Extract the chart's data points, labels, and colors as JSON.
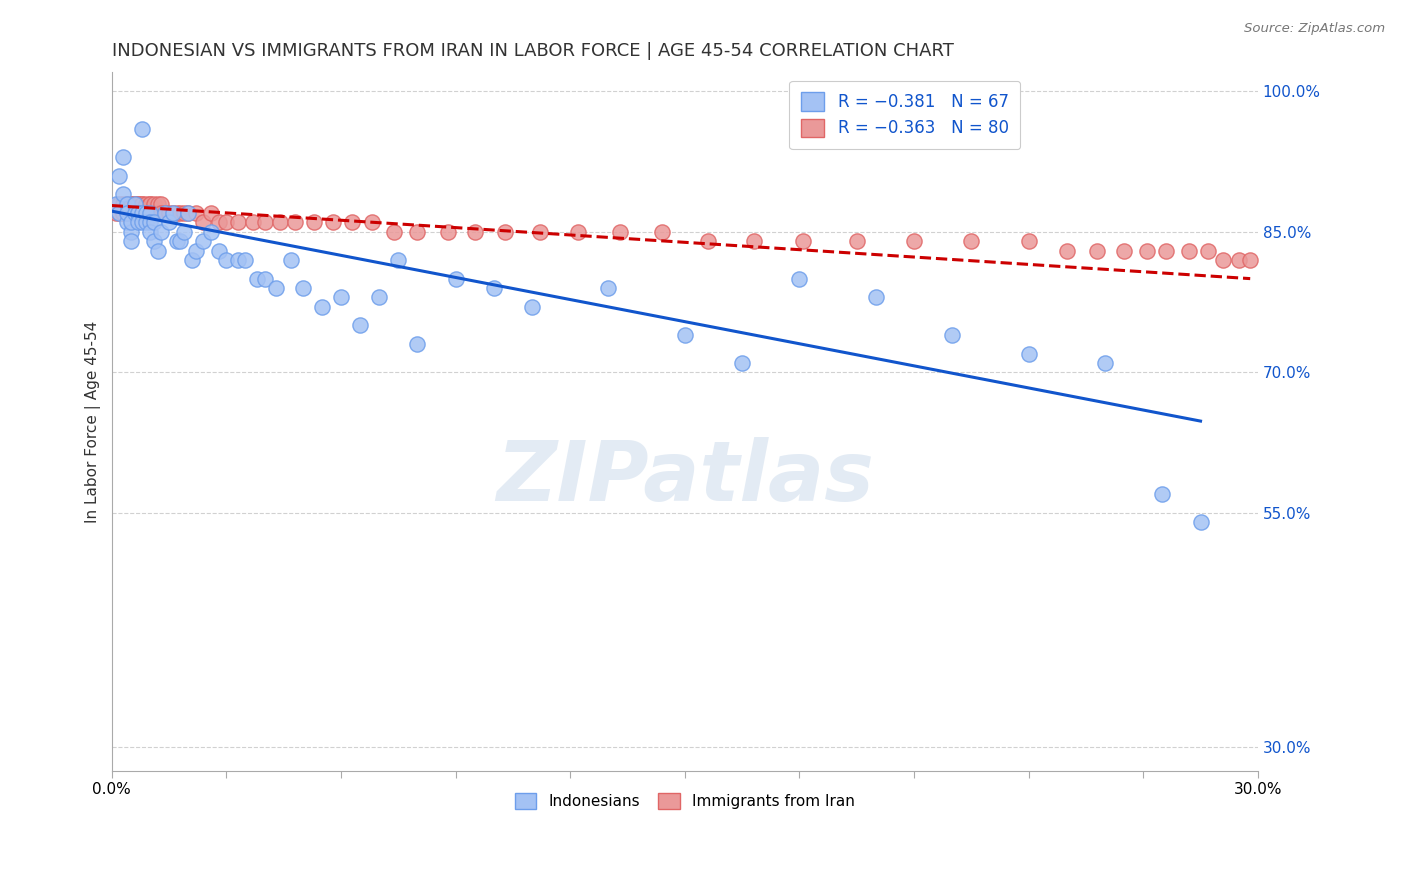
{
  "title": "INDONESIAN VS IMMIGRANTS FROM IRAN IN LABOR FORCE | AGE 45-54 CORRELATION CHART",
  "source": "Source: ZipAtlas.com",
  "ylabel": "In Labor Force | Age 45-54",
  "ytick_labels": [
    "100.0%",
    "85.0%",
    "70.0%",
    "55.0%",
    "30.0%"
  ],
  "ytick_vals": [
    1.0,
    0.85,
    0.7,
    0.55,
    0.3
  ],
  "xlim": [
    0.0,
    0.3
  ],
  "ylim": [
    0.275,
    1.02
  ],
  "blue_color": "#a4c2f4",
  "blue_edge_color": "#6d9eeb",
  "pink_color": "#ea9999",
  "pink_edge_color": "#e06666",
  "blue_line_color": "#1155cc",
  "pink_line_color": "#cc0000",
  "background_color": "#ffffff",
  "grid_color": "#cccccc",
  "watermark": "ZIPatlas",
  "title_fontsize": 13,
  "axis_label_fontsize": 11,
  "tick_fontsize": 11,
  "blue_scatter_x": [
    0.001,
    0.002,
    0.002,
    0.003,
    0.003,
    0.004,
    0.004,
    0.004,
    0.005,
    0.005,
    0.005,
    0.006,
    0.006,
    0.007,
    0.007,
    0.007,
    0.008,
    0.008,
    0.008,
    0.009,
    0.009,
    0.01,
    0.01,
    0.01,
    0.011,
    0.011,
    0.012,
    0.013,
    0.014,
    0.015,
    0.016,
    0.017,
    0.018,
    0.019,
    0.02,
    0.021,
    0.022,
    0.024,
    0.026,
    0.028,
    0.03,
    0.033,
    0.035,
    0.038,
    0.04,
    0.043,
    0.047,
    0.05,
    0.055,
    0.06,
    0.065,
    0.07,
    0.075,
    0.08,
    0.09,
    0.1,
    0.11,
    0.13,
    0.15,
    0.165,
    0.18,
    0.2,
    0.22,
    0.24,
    0.26,
    0.275,
    0.285
  ],
  "blue_scatter_y": [
    0.88,
    0.91,
    0.87,
    0.89,
    0.93,
    0.88,
    0.86,
    0.87,
    0.85,
    0.86,
    0.84,
    0.88,
    0.87,
    0.87,
    0.87,
    0.86,
    0.96,
    0.87,
    0.86,
    0.87,
    0.86,
    0.87,
    0.86,
    0.85,
    0.84,
    0.86,
    0.83,
    0.85,
    0.87,
    0.86,
    0.87,
    0.84,
    0.84,
    0.85,
    0.87,
    0.82,
    0.83,
    0.84,
    0.85,
    0.83,
    0.82,
    0.82,
    0.82,
    0.8,
    0.8,
    0.79,
    0.82,
    0.79,
    0.77,
    0.78,
    0.75,
    0.78,
    0.82,
    0.73,
    0.8,
    0.79,
    0.77,
    0.79,
    0.74,
    0.71,
    0.8,
    0.78,
    0.74,
    0.72,
    0.71,
    0.57,
    0.54
  ],
  "pink_scatter_x": [
    0.001,
    0.002,
    0.002,
    0.003,
    0.003,
    0.003,
    0.004,
    0.004,
    0.004,
    0.005,
    0.005,
    0.005,
    0.006,
    0.006,
    0.006,
    0.007,
    0.007,
    0.007,
    0.008,
    0.008,
    0.008,
    0.009,
    0.009,
    0.009,
    0.01,
    0.01,
    0.01,
    0.011,
    0.011,
    0.012,
    0.012,
    0.013,
    0.013,
    0.014,
    0.015,
    0.016,
    0.017,
    0.018,
    0.019,
    0.02,
    0.022,
    0.024,
    0.026,
    0.028,
    0.03,
    0.033,
    0.037,
    0.04,
    0.044,
    0.048,
    0.053,
    0.058,
    0.063,
    0.068,
    0.074,
    0.08,
    0.088,
    0.095,
    0.103,
    0.112,
    0.122,
    0.133,
    0.144,
    0.156,
    0.168,
    0.181,
    0.195,
    0.21,
    0.225,
    0.24,
    0.25,
    0.258,
    0.265,
    0.271,
    0.276,
    0.282,
    0.287,
    0.291,
    0.295,
    0.298
  ],
  "pink_scatter_y": [
    0.87,
    0.88,
    0.87,
    0.87,
    0.88,
    0.87,
    0.88,
    0.88,
    0.87,
    0.88,
    0.87,
    0.88,
    0.88,
    0.87,
    0.88,
    0.88,
    0.87,
    0.88,
    0.88,
    0.87,
    0.88,
    0.87,
    0.88,
    0.87,
    0.88,
    0.87,
    0.88,
    0.88,
    0.87,
    0.88,
    0.87,
    0.88,
    0.87,
    0.87,
    0.87,
    0.87,
    0.87,
    0.87,
    0.87,
    0.87,
    0.87,
    0.86,
    0.87,
    0.86,
    0.86,
    0.86,
    0.86,
    0.86,
    0.86,
    0.86,
    0.86,
    0.86,
    0.86,
    0.86,
    0.85,
    0.85,
    0.85,
    0.85,
    0.85,
    0.85,
    0.85,
    0.85,
    0.85,
    0.84,
    0.84,
    0.84,
    0.84,
    0.84,
    0.84,
    0.84,
    0.83,
    0.83,
    0.83,
    0.83,
    0.83,
    0.83,
    0.83,
    0.82,
    0.82,
    0.82
  ],
  "blue_trendline_x": [
    0.0,
    0.285
  ],
  "blue_trendline_y": [
    0.872,
    0.648
  ],
  "pink_trendline_x": [
    0.0,
    0.298
  ],
  "pink_trendline_y": [
    0.878,
    0.8
  ]
}
